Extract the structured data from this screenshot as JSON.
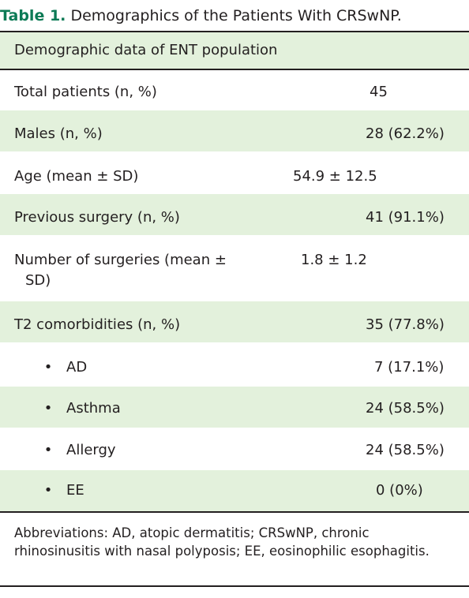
{
  "caption": {
    "label": "Table 1.",
    "title": "Demographics of the Patients With CRSwNP."
  },
  "table": {
    "header": "Demographic data of ENT population",
    "rows": [
      {
        "label": "Total patients (n, %)",
        "value": "45"
      },
      {
        "label": "Males (n, %)",
        "value": "28 (62.2%)"
      },
      {
        "label": "Age (mean ± SD)",
        "value": "54.9 ± 12.5"
      },
      {
        "label": "Previous surgery (n, %)",
        "value": "41 (91.1%)"
      },
      {
        "label_line1": "Number of surgeries (mean ±",
        "label_line2": "SD)",
        "value": "1.8 ± 1.2"
      },
      {
        "label": "T2 comorbidities (n, %)",
        "value": "35 (77.8%)"
      },
      {
        "bullet": "•",
        "label": "AD",
        "value": "7 (17.1%)"
      },
      {
        "bullet": "•",
        "label": "Asthma",
        "value": "24 (58.5%)"
      },
      {
        "bullet": "•",
        "label": "Allergy",
        "value": "24 (58.5%)"
      },
      {
        "bullet": "•",
        "label": "EE",
        "value": "0 (0%)"
      }
    ]
  },
  "footnote": "Abbreviations: AD, atopic dermatitis; CRSwNP, chronic rhinosinusitis with nasal polyposis; EE, eosinophilic esophagitis.",
  "colors": {
    "caption_label": "#0c7a55",
    "band": "#e3f1dc",
    "text": "#231f20"
  }
}
